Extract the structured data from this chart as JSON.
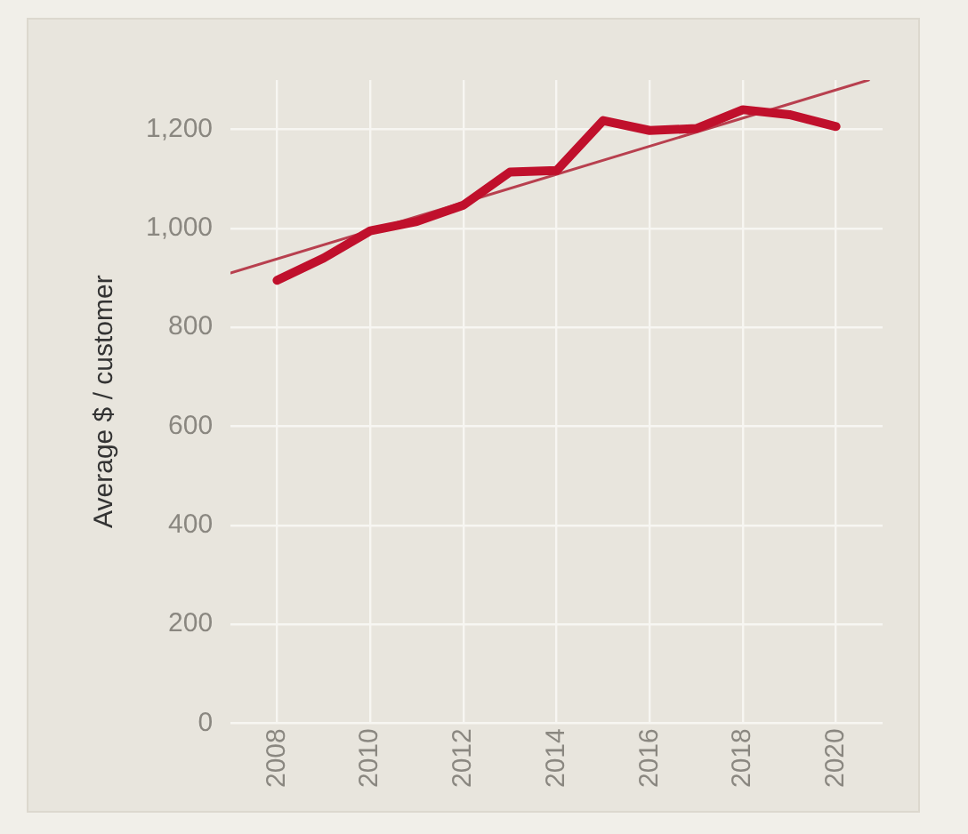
{
  "chart_data": {
    "type": "line",
    "ylabel": "Average $ / customer",
    "x": [
      2008,
      2009,
      2010,
      2011,
      2012,
      2013,
      2014,
      2015,
      2016,
      2017,
      2018,
      2019,
      2020
    ],
    "series": [
      {
        "color": "#c0102c",
        "values": [
          895,
          940,
          995,
          1014,
          1047,
          1114,
          1117,
          1218,
          1198,
          1202,
          1240,
          1230,
          1206
        ]
      },
      {
        "type": "line",
        "color": "#b8404f",
        "x": [
          2007,
          2020.7
        ],
        "values": [
          910,
          1300
        ]
      }
    ],
    "xlim": [
      2007,
      2021
    ],
    "xticks": [
      2008,
      2010,
      2012,
      2014,
      2016,
      2018,
      2020
    ],
    "ylim": [
      0,
      1300
    ],
    "yticks": [
      0,
      200,
      400,
      600,
      800,
      {
        "value": 1000,
        "label": "1,000"
      },
      {
        "value": 1200,
        "label": "1,200"
      }
    ],
    "grid": true,
    "legend": false,
    "marker": "none"
  }
}
